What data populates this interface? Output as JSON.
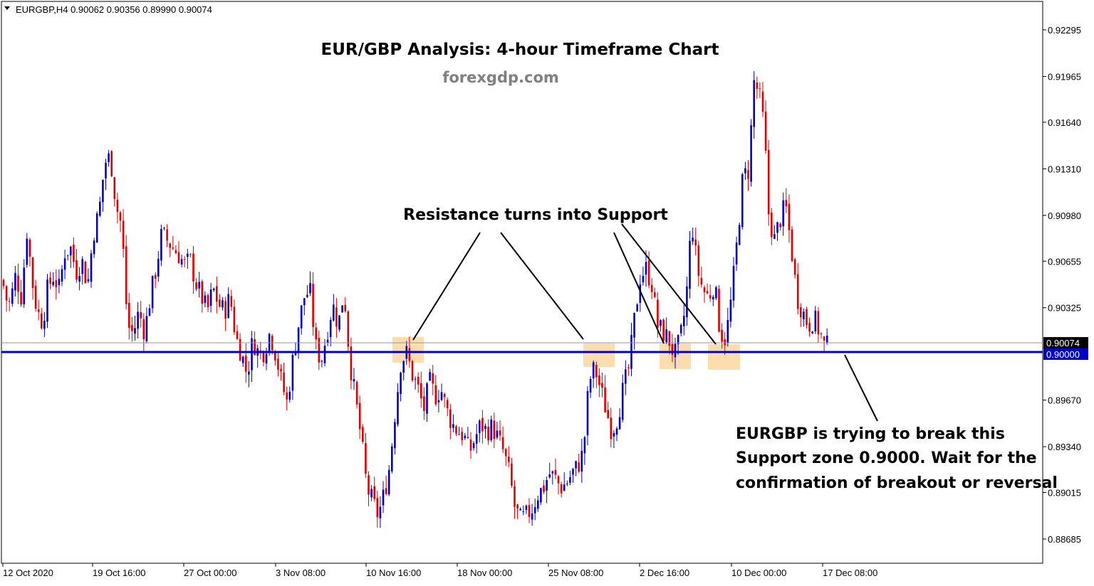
{
  "header": {
    "symbol_info": "EURGBP,H4  0.90062 0.90356 0.89990 0.90074",
    "menu_icon": "triangle-down-icon"
  },
  "colors": {
    "bull": "#0000cc",
    "bear": "#e00000",
    "support_line": "#0000cc",
    "price_line": "#8c96a0",
    "zone": "#fad7a0",
    "price_tag_bg": "#000000",
    "support_tag_bg": "#0000cc"
  },
  "chart_data": {
    "type": "candlestick",
    "title": "EUR/GBP Analysis: 4-hour Timeframe Chart",
    "subtitle": "forexgdp.com",
    "ylim": [
      0.8852,
      0.9243
    ],
    "y_ticks": [
      "0.92295",
      "0.91965",
      "0.91640",
      "0.91310",
      "0.90980",
      "0.90655",
      "0.90325",
      "0.89670",
      "0.89340",
      "0.89015",
      "0.88685"
    ],
    "x_ticks": [
      "12 Oct 2020",
      "19 Oct 16:00",
      "27 Oct 00:00",
      "3 Nov 08:00",
      "10 Nov 16:00",
      "18 Nov 00:00",
      "25 Nov 08:00",
      "2 Dec 16:00",
      "10 Dec 00:00",
      "17 Dec 08:00"
    ],
    "current_price": "0.90074",
    "support_level": "0.90000",
    "price_path": [
      [
        0,
        0.9068
      ],
      [
        7,
        0.904
      ],
      [
        14,
        0.9035
      ],
      [
        22,
        0.9056
      ],
      [
        30,
        0.904
      ],
      [
        38,
        0.9088
      ],
      [
        45,
        0.9052
      ],
      [
        52,
        0.903
      ],
      [
        60,
        0.9022
      ],
      [
        67,
        0.9047
      ],
      [
        75,
        0.9055
      ],
      [
        83,
        0.9046
      ],
      [
        91,
        0.9072
      ],
      [
        99,
        0.9075
      ],
      [
        107,
        0.9058
      ],
      [
        115,
        0.9066
      ],
      [
        123,
        0.9048
      ],
      [
        131,
        0.9085
      ],
      [
        139,
        0.91
      ],
      [
        147,
        0.9135
      ],
      [
        155,
        0.914
      ],
      [
        163,
        0.9105
      ],
      [
        171,
        0.909
      ],
      [
        179,
        0.902
      ],
      [
        187,
        0.9014
      ],
      [
        195,
        0.903
      ],
      [
        203,
        0.9015
      ],
      [
        211,
        0.904
      ],
      [
        219,
        0.906
      ],
      [
        227,
        0.9085
      ],
      [
        235,
        0.908
      ],
      [
        243,
        0.9075
      ],
      [
        251,
        0.907
      ],
      [
        259,
        0.9063
      ],
      [
        267,
        0.9066
      ],
      [
        275,
        0.905
      ],
      [
        283,
        0.904
      ],
      [
        291,
        0.903
      ],
      [
        299,
        0.9046
      ],
      [
        307,
        0.9035
      ],
      [
        315,
        0.903
      ],
      [
        323,
        0.904
      ],
      [
        331,
        0.9012
      ],
      [
        339,
        0.9
      ],
      [
        347,
        0.8985
      ],
      [
        355,
        0.901
      ],
      [
        363,
        0.9
      ],
      [
        371,
        0.9002
      ],
      [
        379,
        0.9015
      ],
      [
        387,
        0.9
      ],
      [
        395,
        0.898
      ],
      [
        403,
        0.8965
      ],
      [
        411,
        0.8995
      ],
      [
        419,
        0.902
      ],
      [
        427,
        0.904
      ],
      [
        435,
        0.9045
      ],
      [
        443,
        0.9005
      ],
      [
        451,
        0.8995
      ],
      [
        459,
        0.9015
      ],
      [
        467,
        0.9035
      ],
      [
        475,
        0.902
      ],
      [
        483,
        0.9045
      ],
      [
        491,
        0.8995
      ],
      [
        499,
        0.8968
      ],
      [
        507,
        0.894
      ],
      [
        515,
        0.8905
      ],
      [
        523,
        0.8895
      ],
      [
        531,
        0.8885
      ],
      [
        539,
        0.89
      ],
      [
        547,
        0.892
      ],
      [
        555,
        0.896
      ],
      [
        563,
        0.8995
      ],
      [
        571,
        0.9
      ],
      [
        579,
        0.8985
      ],
      [
        587,
        0.8975
      ],
      [
        595,
        0.896
      ],
      [
        603,
        0.898
      ],
      [
        611,
        0.897
      ],
      [
        619,
        0.8975
      ],
      [
        627,
        0.896
      ],
      [
        635,
        0.895
      ],
      [
        643,
        0.8945
      ],
      [
        651,
        0.8942
      ],
      [
        659,
        0.893
      ],
      [
        667,
        0.894
      ],
      [
        675,
        0.895
      ],
      [
        683,
        0.8945
      ],
      [
        691,
        0.8948
      ],
      [
        699,
        0.894
      ],
      [
        707,
        0.893
      ],
      [
        715,
        0.8915
      ],
      [
        723,
        0.889
      ],
      [
        731,
        0.8882
      ],
      [
        739,
        0.8885
      ],
      [
        747,
        0.889
      ],
      [
        755,
        0.89
      ],
      [
        763,
        0.8905
      ],
      [
        771,
        0.8915
      ],
      [
        779,
        0.8912
      ],
      [
        787,
        0.8905
      ],
      [
        795,
        0.8908
      ],
      [
        803,
        0.8915
      ],
      [
        811,
        0.892
      ],
      [
        819,
        0.893
      ],
      [
        827,
        0.898
      ],
      [
        835,
        0.899
      ],
      [
        843,
        0.8975
      ],
      [
        851,
        0.896
      ],
      [
        859,
        0.8945
      ],
      [
        867,
        0.8955
      ],
      [
        875,
        0.8975
      ],
      [
        883,
        0.899
      ],
      [
        891,
        0.9025
      ],
      [
        899,
        0.9055
      ],
      [
        907,
        0.906
      ],
      [
        915,
        0.905
      ],
      [
        923,
        0.902
      ],
      [
        931,
        0.9015
      ],
      [
        939,
        0.901
      ],
      [
        947,
        0.8998
      ],
      [
        955,
        0.901
      ],
      [
        963,
        0.9035
      ],
      [
        971,
        0.9095
      ],
      [
        979,
        0.906
      ],
      [
        987,
        0.9045
      ],
      [
        995,
        0.904
      ],
      [
        1003,
        0.905
      ],
      [
        1011,
        0.9015
      ],
      [
        1019,
        0.901
      ],
      [
        1027,
        0.904
      ],
      [
        1035,
        0.908
      ],
      [
        1043,
        0.9125
      ],
      [
        1051,
        0.913
      ],
      [
        1059,
        0.9195
      ],
      [
        1067,
        0.918
      ],
      [
        1073,
        0.916
      ],
      [
        1079,
        0.91
      ],
      [
        1087,
        0.908
      ],
      [
        1095,
        0.9095
      ],
      [
        1103,
        0.9105
      ],
      [
        1111,
        0.9075
      ],
      [
        1119,
        0.904
      ],
      [
        1127,
        0.903
      ],
      [
        1135,
        0.902
      ],
      [
        1143,
        0.9025
      ],
      [
        1151,
        0.9015
      ],
      [
        1159,
        0.9003
      ],
      [
        1163,
        0.9007
      ]
    ]
  },
  "annotations": {
    "resistance_label": "Resistance turns into Support",
    "callout_line1": "EURGBP is trying to break this",
    "callout_line2": "Support zone 0.9000. Wait for the",
    "callout_line3": "confirmation of breakout or reversal"
  }
}
